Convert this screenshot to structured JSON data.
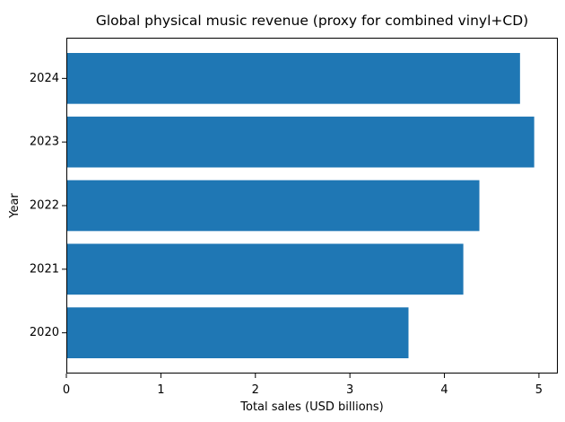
{
  "chart_data": {
    "type": "bar",
    "orientation": "horizontal",
    "title": "Global physical music revenue (proxy for combined vinyl+CD)",
    "xlabel": "Total sales (USD billions)",
    "ylabel": "Year",
    "categories": [
      "2020",
      "2021",
      "2022",
      "2023",
      "2024"
    ],
    "values": [
      3.62,
      4.2,
      4.37,
      4.95,
      4.8
    ],
    "xlim": [
      0,
      5.2
    ],
    "xticks": [
      "0",
      "1",
      "2",
      "3",
      "4",
      "5"
    ],
    "grid": false,
    "bar_color": "#1f77b4"
  }
}
